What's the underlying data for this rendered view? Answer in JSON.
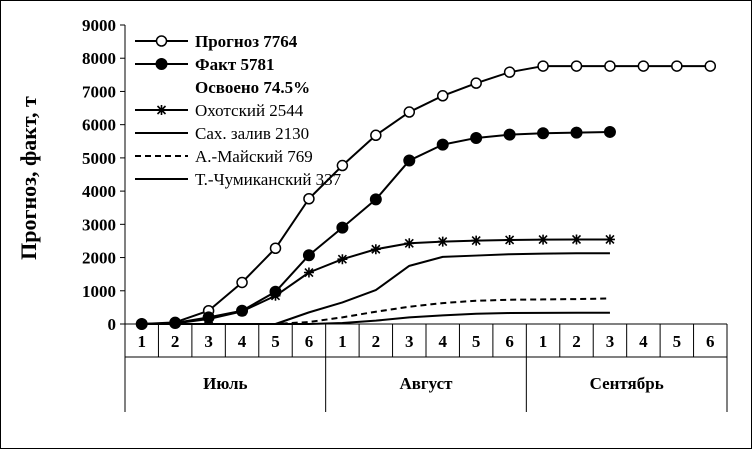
{
  "chart_data": {
    "type": "line",
    "title": "",
    "xlabel": "",
    "ylabel": "Прогноз, факт, т",
    "ylim": [
      0,
      9000
    ],
    "yticks": [
      0,
      1000,
      2000,
      3000,
      4000,
      5000,
      6000,
      7000,
      8000,
      9000
    ],
    "categories": [
      "1",
      "2",
      "3",
      "4",
      "5",
      "6",
      "1",
      "2",
      "3",
      "4",
      "5",
      "6",
      "1",
      "2",
      "3",
      "4",
      "5",
      "6"
    ],
    "groups": [
      {
        "label": "Июль",
        "span": 6
      },
      {
        "label": "Август",
        "span": 6
      },
      {
        "label": "Сентябрь",
        "span": 6
      }
    ],
    "grid": false,
    "legend_position": "top-left",
    "note": "Освоено 74.5%",
    "series": [
      {
        "name": "Прогноз 7764",
        "marker": "open-circle",
        "style": "solid",
        "bold": true,
        "values": [
          0,
          50,
          400,
          1250,
          2280,
          3770,
          4770,
          5680,
          6380,
          6870,
          7250,
          7580,
          7764,
          7764,
          7764,
          7764,
          7764,
          7764
        ]
      },
      {
        "name": "Факт 5781",
        "marker": "filled-circle",
        "style": "solid",
        "bold": true,
        "values": [
          0,
          30,
          200,
          400,
          970,
          2070,
          2900,
          3750,
          4920,
          5400,
          5600,
          5700,
          5740,
          5760,
          5781,
          null,
          null,
          null
        ]
      },
      {
        "name": "Охотский 2544",
        "marker": "star",
        "style": "solid",
        "bold": false,
        "values": [
          0,
          20,
          150,
          380,
          850,
          1550,
          1950,
          2250,
          2430,
          2480,
          2510,
          2530,
          2540,
          2544,
          2544,
          null,
          null,
          null
        ]
      },
      {
        "name": "Сах. залив 2130",
        "marker": "none",
        "style": "solid",
        "bold": false,
        "values": [
          0,
          0,
          0,
          0,
          0,
          350,
          650,
          1020,
          1750,
          2020,
          2060,
          2100,
          2120,
          2130,
          2130,
          null,
          null,
          null
        ]
      },
      {
        "name": "А.-Майский 769",
        "marker": "none",
        "style": "dashed",
        "bold": false,
        "values": [
          0,
          0,
          0,
          0,
          0,
          60,
          200,
          370,
          520,
          630,
          700,
          730,
          740,
          750,
          769,
          null,
          null,
          null
        ]
      },
      {
        "name": "Т.-Чумиканский 337",
        "marker": "none",
        "style": "solid",
        "bold": false,
        "values": [
          0,
          0,
          0,
          0,
          0,
          0,
          30,
          100,
          200,
          260,
          310,
          330,
          335,
          337,
          337,
          null,
          null,
          null
        ]
      }
    ]
  }
}
